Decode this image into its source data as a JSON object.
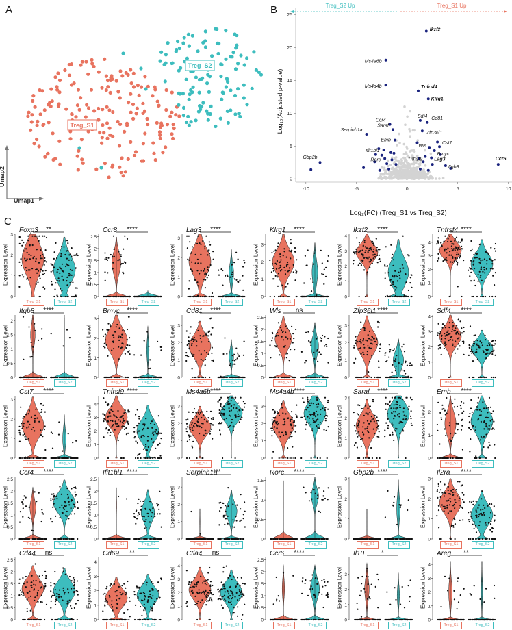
{
  "panels": {
    "a": "A",
    "b": "B",
    "c": "C"
  },
  "colors": {
    "s1": "#E8735F",
    "s2": "#3DBDBE",
    "sig": "#1A237E",
    "nonsig": "#D3D3D3"
  },
  "umap": {
    "cluster1_label": "Treg_S1",
    "cluster2_label": "Treg_S2",
    "xaxis_label": "Umap1",
    "yaxis_label": "Umap2"
  },
  "volcano": {
    "left_arrow_label": "Treg_S2 Up",
    "right_arrow_label": "Treg_S1 Up",
    "xlabel": "Log₂(FC) (Treg_S1 vs Treg_S2)",
    "ylabel": "Log₁₀(Adjusted p-value)",
    "xticks": [
      -10,
      -5,
      0,
      5,
      10
    ],
    "yticks": [
      0,
      5,
      10,
      15,
      20,
      25
    ],
    "xlim": [
      -11,
      10.5
    ],
    "ylim": [
      -0.5,
      26
    ],
    "genes": [
      {
        "name": "Ikzf2",
        "x": 1.9,
        "y": 22.5,
        "bold": true
      },
      {
        "name": "Ms4a6b",
        "x": -2.1,
        "y": 18.1,
        "bold": false
      },
      {
        "name": "Tnfrsf4",
        "x": 1.1,
        "y": 13.4,
        "bold": true
      },
      {
        "name": "Ms4a4b",
        "x": -2.1,
        "y": 14.3,
        "bold": false
      },
      {
        "name": "Klrg1",
        "x": 2.1,
        "y": 12.2,
        "bold": true
      },
      {
        "name": "Sdf4",
        "x": 1.3,
        "y": 8.9,
        "bold": false
      },
      {
        "name": "Cd81",
        "x": 2.0,
        "y": 8.6,
        "bold": false
      },
      {
        "name": "Ccr4",
        "x": -1.7,
        "y": 8.3,
        "bold": false
      },
      {
        "name": "Saraf",
        "x": -1.4,
        "y": 7.5,
        "bold": false
      },
      {
        "name": "Zfp36l1",
        "x": 1.5,
        "y": 7.3,
        "bold": false
      },
      {
        "name": "Serpinb1a",
        "x": -4.0,
        "y": 6.8,
        "bold": false
      },
      {
        "name": "Emb",
        "x": -1.2,
        "y": 5.9,
        "bold": false
      },
      {
        "name": "Cst7",
        "x": 3.2,
        "y": 4.9,
        "bold": false
      },
      {
        "name": "Wls",
        "x": 2.2,
        "y": 4.8,
        "bold": false
      },
      {
        "name": "Ifit1bl1",
        "x": -2.3,
        "y": 4.4,
        "bold": false
      },
      {
        "name": "Bmyc",
        "x": 2.7,
        "y": 4.3,
        "bold": false
      },
      {
        "name": "Tnfrsf9",
        "x": 1.8,
        "y": 3.4,
        "bold": false
      },
      {
        "name": "Lag3",
        "x": 2.4,
        "y": 3.2,
        "bold": true
      },
      {
        "name": "Rorc",
        "x": -2.2,
        "y": 3.1,
        "bold": false
      },
      {
        "name": "Gbp2b",
        "x": -8.6,
        "y": 2.5,
        "bold": false
      },
      {
        "name": "Itgb8",
        "x": 3.8,
        "y": 2.0,
        "bold": false
      },
      {
        "name": "Ccr6",
        "x": 9.0,
        "y": 2.2,
        "bold": true
      }
    ],
    "extra_sig_points": [
      {
        "x": -9.5,
        "y": 1.4
      },
      {
        "x": -4.3,
        "y": 1.7
      },
      {
        "x": -3.2,
        "y": 2.6
      },
      {
        "x": -2.7,
        "y": 1.3
      },
      {
        "x": -2.5,
        "y": 3.6
      },
      {
        "x": -2.0,
        "y": 2.3
      },
      {
        "x": -1.8,
        "y": 1.5
      },
      {
        "x": -1.6,
        "y": 4.0
      },
      {
        "x": -1.5,
        "y": 2.9
      },
      {
        "x": -1.3,
        "y": 3.9
      },
      {
        "x": -1.1,
        "y": 2.2
      },
      {
        "x": 1.2,
        "y": 3.1
      },
      {
        "x": 1.3,
        "y": 1.5
      },
      {
        "x": 1.6,
        "y": 2.6
      },
      {
        "x": 2.1,
        "y": 1.3
      },
      {
        "x": 2.5,
        "y": 2.2
      },
      {
        "x": 3.3,
        "y": 3.7
      },
      {
        "x": 4.3,
        "y": 1.6
      },
      {
        "x": 1.0,
        "y": 5.5
      },
      {
        "x": -2.8,
        "y": 4.6
      },
      {
        "x": 3.0,
        "y": 5.6
      },
      {
        "x": -3.1,
        "y": 3.7
      }
    ]
  },
  "violin": {
    "ylabel": "Expression Level",
    "group1": "Treg_S1",
    "group2": "Treg_S2",
    "genes": [
      {
        "name": "Foxp3",
        "sig": "**",
        "ymax": 3,
        "ticks": [
          0,
          1,
          2,
          3
        ],
        "s1": {
          "m": 1.8,
          "sd": 0.75,
          "z": 0.05
        },
        "s2": {
          "m": 1.3,
          "sd": 0.65,
          "z": 0.15
        }
      },
      {
        "name": "Ccr8",
        "sig": "****",
        "ymax": 2.6,
        "ticks": [
          0,
          0.5,
          1,
          1.5,
          2,
          2.5
        ],
        "s1": {
          "m": 1.4,
          "sd": 0.45,
          "z": 0.6
        },
        "s2": {
          "m": 0,
          "sd": 0.1,
          "z": 1.0
        }
      },
      {
        "name": "Lag3",
        "sig": "****",
        "ymax": 3.2,
        "ticks": [
          0,
          1,
          2,
          3
        ],
        "s1": {
          "m": 1.8,
          "sd": 0.7,
          "z": 0.3
        },
        "s2": {
          "m": 1.2,
          "sd": 0.5,
          "z": 0.75
        }
      },
      {
        "name": "Klrg1",
        "sig": "****",
        "ymax": 3.6,
        "ticks": [
          0,
          1,
          2,
          3
        ],
        "s1": {
          "m": 2.0,
          "sd": 0.7,
          "z": 0.2
        },
        "s2": {
          "m": 1.4,
          "sd": 0.7,
          "z": 0.7
        }
      },
      {
        "name": "Ikzf2",
        "sig": "****",
        "ymax": 4.1,
        "ticks": [
          0,
          1,
          2,
          3,
          4
        ],
        "s1": {
          "m": 2.9,
          "sd": 0.55,
          "z": 0.05
        },
        "s2": {
          "m": 1.6,
          "sd": 0.9,
          "z": 0.35
        }
      },
      {
        "name": "Tnfrsf4",
        "sig": "****",
        "ymax": 4.6,
        "ticks": [
          0,
          1,
          2,
          3,
          4
        ],
        "s1": {
          "m": 3.4,
          "sd": 0.6,
          "z": 0.02
        },
        "s2": {
          "m": 2.4,
          "sd": 0.75,
          "z": 0.1
        }
      },
      {
        "name": "Itgb8",
        "sig": "****",
        "ymax": 2.2,
        "ticks": [
          0,
          0.5,
          1,
          1.5,
          2
        ],
        "s1": {
          "m": 1.5,
          "sd": 0.35,
          "z": 0.75
        },
        "s2": {
          "m": 1.5,
          "sd": 0.3,
          "z": 0.98
        }
      },
      {
        "name": "Bmyc",
        "sig": "****",
        "ymax": 3.2,
        "ticks": [
          0,
          1,
          2,
          3
        ],
        "s1": {
          "m": 1.9,
          "sd": 0.6,
          "z": 0.3
        },
        "s2": {
          "m": 1.4,
          "sd": 0.5,
          "z": 0.85
        }
      },
      {
        "name": "Cd81",
        "sig": "****",
        "ymax": 3.6,
        "ticks": [
          0,
          1,
          2,
          3
        ],
        "s1": {
          "m": 1.8,
          "sd": 0.6,
          "z": 0.15
        },
        "s2": {
          "m": 1.2,
          "sd": 0.4,
          "z": 0.75
        }
      },
      {
        "name": "Wls",
        "sig": "ns",
        "ymax": 2.6,
        "ticks": [
          0,
          0.5,
          1,
          1.5,
          2,
          2.5
        ],
        "s1": {
          "m": 1.6,
          "sd": 0.4,
          "z": 0.45
        },
        "s2": {
          "m": 1.3,
          "sd": 0.4,
          "z": 0.65
        }
      },
      {
        "name": "Zfp36l1",
        "sig": "****",
        "ymax": 3.6,
        "ticks": [
          0,
          1,
          2,
          3
        ],
        "s1": {
          "m": 2.0,
          "sd": 0.65,
          "z": 0.2
        },
        "s2": {
          "m": 1.0,
          "sd": 0.5,
          "z": 0.55
        }
      },
      {
        "name": "Sdf4",
        "sig": "****",
        "ymax": 4.1,
        "ticks": [
          0,
          1,
          2,
          3,
          4
        ],
        "s1": {
          "m": 2.7,
          "sd": 0.6,
          "z": 0.05
        },
        "s2": {
          "m": 1.9,
          "sd": 0.5,
          "z": 0.15
        }
      },
      {
        "name": "Cst7",
        "sig": "****",
        "ymax": 3.2,
        "ticks": [
          0,
          1,
          2,
          3
        ],
        "s1": {
          "m": 1.7,
          "sd": 0.6,
          "z": 0.35
        },
        "s2": {
          "m": 1.0,
          "sd": 0.5,
          "z": 0.8
        }
      },
      {
        "name": "Tnfrsf9",
        "sig": "****",
        "ymax": 4.6,
        "ticks": [
          0,
          1,
          2,
          3,
          4
        ],
        "s1": {
          "m": 3.0,
          "sd": 0.7,
          "z": 0.05
        },
        "s2": {
          "m": 2.0,
          "sd": 0.8,
          "z": 0.2
        }
      },
      {
        "name": "Ms4a6b",
        "sig": "****",
        "ymax": 3.6,
        "ticks": [
          0,
          1,
          2,
          3
        ],
        "s1": {
          "m": 1.8,
          "sd": 0.5,
          "z": 0.05
        },
        "s2": {
          "m": 2.6,
          "sd": 0.5,
          "z": 0.02
        }
      },
      {
        "name": "Ms4a4b",
        "sig": "****",
        "ymax": 3.6,
        "ticks": [
          0,
          1,
          2,
          3
        ],
        "s1": {
          "m": 1.9,
          "sd": 0.6,
          "z": 0.15
        },
        "s2": {
          "m": 2.6,
          "sd": 0.6,
          "z": 0.05
        }
      },
      {
        "name": "Saraf",
        "sig": "****",
        "ymax": 3.1,
        "ticks": [
          0,
          1,
          2,
          3
        ],
        "s1": {
          "m": 1.6,
          "sd": 0.55,
          "z": 0.1
        },
        "s2": {
          "m": 2.2,
          "sd": 0.55,
          "z": 0.03
        }
      },
      {
        "name": "Emb",
        "sig": "****",
        "ymax": 2.7,
        "ticks": [
          0,
          1,
          2
        ],
        "s1": {
          "m": 1.5,
          "sd": 0.5,
          "z": 0.55
        },
        "s2": {
          "m": 1.6,
          "sd": 0.5,
          "z": 0.2
        }
      },
      {
        "name": "Ccr4",
        "sig": "****",
        "ymax": 2.6,
        "ticks": [
          0,
          0.5,
          1,
          1.5,
          2,
          2.5
        ],
        "s1": {
          "m": 1.3,
          "sd": 0.35,
          "z": 0.7
        },
        "s2": {
          "m": 1.5,
          "sd": 0.4,
          "z": 0.25
        }
      },
      {
        "name": "Ifit1bl1",
        "sig": "****",
        "ymax": 2.6,
        "ticks": [
          0,
          0.5,
          1,
          1.5,
          2,
          2.5
        ],
        "s1": {
          "m": 1.4,
          "sd": 0.3,
          "z": 0.95
        },
        "s2": {
          "m": 1.1,
          "sd": 0.4,
          "z": 0.5
        }
      },
      {
        "name": "Serpinb1a",
        "sig": "****",
        "ymax": 3.6,
        "ticks": [
          0,
          1,
          2,
          3
        ],
        "s1": {
          "m": 1.0,
          "sd": 0.3,
          "z": 0.97
        },
        "s2": {
          "m": 1.6,
          "sd": 0.5,
          "z": 0.55
        }
      },
      {
        "name": "Rorc",
        "sig": "****",
        "ymax": 1.6,
        "ticks": [
          0,
          0.5,
          1,
          1.5
        ],
        "s1": {
          "m": 1.0,
          "sd": 0.2,
          "z": 0.99
        },
        "s2": {
          "m": 1.1,
          "sd": 0.2,
          "z": 0.65
        }
      },
      {
        "name": "Gbp2b",
        "sig": "****",
        "ymax": 3.1,
        "ticks": [
          0,
          1,
          2,
          3
        ],
        "s1": {
          "m": 1.0,
          "sd": 0.2,
          "z": 1.0
        },
        "s2": {
          "m": 1.5,
          "sd": 0.6,
          "z": 0.8
        }
      },
      {
        "name": "Il2ra",
        "sig": "****",
        "ymax": 3.1,
        "ticks": [
          0,
          1,
          2,
          3
        ],
        "s1": {
          "m": 1.8,
          "sd": 0.5,
          "z": 0.05
        },
        "s2": {
          "m": 1.2,
          "sd": 0.5,
          "z": 0.25
        }
      },
      {
        "name": "Cd44",
        "sig": "ns",
        "ymax": 2.6,
        "ticks": [
          0,
          0.5,
          1,
          1.5,
          2,
          2.5
        ],
        "s1": {
          "m": 1.3,
          "sd": 0.4,
          "z": 0.25
        },
        "s2": {
          "m": 1.2,
          "sd": 0.4,
          "z": 0.3
        }
      },
      {
        "name": "Cd69",
        "sig": "**",
        "ymax": 4.3,
        "ticks": [
          0,
          1,
          2,
          3,
          4
        ],
        "s1": {
          "m": 1.5,
          "sd": 0.6,
          "z": 0.3
        },
        "s2": {
          "m": 1.7,
          "sd": 0.6,
          "z": 0.25
        }
      },
      {
        "name": "Ctla4",
        "sig": "ns",
        "ymax": 4.6,
        "ticks": [
          0,
          1,
          2,
          3,
          4
        ],
        "s1": {
          "m": 2.2,
          "sd": 0.7,
          "z": 0.05
        },
        "s2": {
          "m": 2.0,
          "sd": 0.7,
          "z": 0.05
        }
      },
      {
        "name": "Ccr6",
        "sig": "****",
        "ymax": 2.6,
        "ticks": [
          0,
          0.5,
          1,
          1.5,
          2,
          2.5
        ],
        "s1": {
          "m": 1.3,
          "sd": 0.4,
          "z": 0.85
        },
        "s2": {
          "m": 1.3,
          "sd": 0.4,
          "z": 0.6
        }
      },
      {
        "name": "Il10",
        "sig": "*",
        "ymax": 4.1,
        "ticks": [
          0,
          1,
          2,
          3
        ],
        "s1": {
          "m": 2.0,
          "sd": 0.7,
          "z": 0.75
        },
        "s2": {
          "m": 1.6,
          "sd": 0.6,
          "z": 0.85
        }
      },
      {
        "name": "Areg",
        "sig": "**",
        "ymax": 4.5,
        "ticks": [
          0,
          1,
          2,
          3,
          4
        ],
        "s1": {
          "m": 2.0,
          "sd": 0.9,
          "z": 0.8
        },
        "s2": {
          "m": 2.0,
          "sd": 0.9,
          "z": 0.9
        }
      }
    ]
  }
}
